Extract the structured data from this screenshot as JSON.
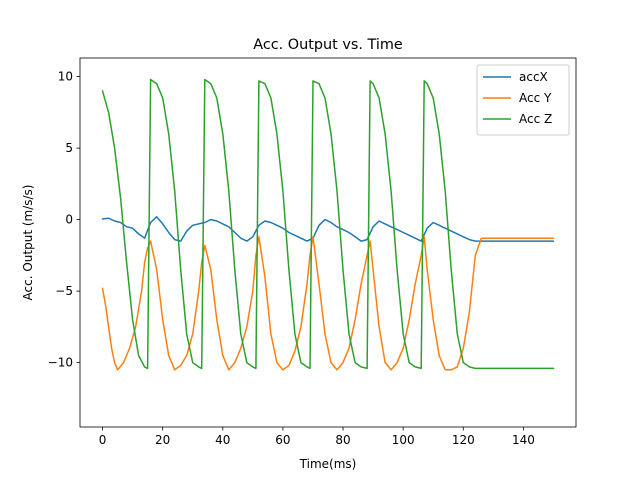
{
  "chart_data": {
    "type": "line",
    "title": "Acc. Output vs. Time",
    "xlabel": "Time(ms)",
    "ylabel": "Acc. Output (m/s/s)",
    "xlim": [
      -7.5,
      157.5
    ],
    "ylim": [
      -14.5,
      11.3
    ],
    "xticks": [
      0,
      20,
      40,
      60,
      80,
      100,
      120,
      140
    ],
    "yticks": [
      -10,
      -5,
      0,
      5,
      10
    ],
    "grid": false,
    "legend_position": "top-right",
    "series": [
      {
        "name": "accX",
        "color": "#1f77b4",
        "x": [
          0,
          2,
          4,
          6,
          8,
          10,
          12,
          14,
          16,
          18,
          20,
          22,
          24,
          26,
          28,
          30,
          32,
          34,
          36,
          38,
          40,
          42,
          44,
          46,
          48,
          50,
          52,
          54,
          56,
          58,
          60,
          62,
          64,
          66,
          68,
          70,
          72,
          74,
          76,
          78,
          80,
          82,
          84,
          86,
          88,
          90,
          92,
          94,
          96,
          98,
          100,
          102,
          104,
          106,
          108,
          110,
          112,
          114,
          116,
          118,
          120,
          122,
          124,
          126,
          128,
          130,
          132,
          134,
          136,
          138,
          140,
          142,
          144,
          146,
          148,
          150
        ],
        "y": [
          0.05,
          0.1,
          -0.1,
          -0.2,
          -0.5,
          -0.6,
          -1.0,
          -1.3,
          -0.2,
          0.2,
          -0.3,
          -0.9,
          -1.4,
          -1.5,
          -0.8,
          -0.4,
          -0.3,
          -0.2,
          0.0,
          -0.1,
          -0.3,
          -0.5,
          -0.9,
          -1.3,
          -1.5,
          -1.2,
          -0.4,
          -0.1,
          -0.2,
          -0.4,
          -0.6,
          -0.9,
          -1.1,
          -1.3,
          -1.5,
          -1.3,
          -0.4,
          0.0,
          -0.2,
          -0.5,
          -0.7,
          -0.9,
          -1.2,
          -1.5,
          -1.4,
          -0.5,
          -0.1,
          -0.3,
          -0.5,
          -0.7,
          -0.9,
          -1.1,
          -1.3,
          -1.5,
          -0.6,
          -0.2,
          -0.4,
          -0.6,
          -0.8,
          -1.0,
          -1.2,
          -1.4,
          -1.5,
          -1.5,
          -1.5,
          -1.5,
          -1.5,
          -1.5,
          -1.5,
          -1.5,
          -1.5,
          -1.5,
          -1.5,
          -1.5,
          -1.5,
          -1.5
        ]
      },
      {
        "name": "Acc Y",
        "color": "#ff7f0e",
        "x": [
          0,
          1,
          2,
          3,
          4,
          5,
          7,
          9,
          11,
          13,
          14,
          15,
          16,
          18,
          20,
          22,
          24,
          26,
          28,
          30,
          32,
          33,
          34,
          36,
          38,
          40,
          42,
          44,
          46,
          48,
          50,
          51,
          52,
          54,
          56,
          58,
          60,
          62,
          64,
          66,
          68,
          69,
          70,
          72,
          74,
          76,
          78,
          80,
          82,
          84,
          86,
          88,
          89,
          90,
          92,
          94,
          96,
          98,
          100,
          102,
          104,
          106,
          107,
          108,
          110,
          112,
          114,
          116,
          118,
          120,
          122,
          124,
          126,
          128,
          130,
          132,
          134,
          136,
          138,
          140,
          142,
          144,
          146,
          148,
          150
        ],
        "y": [
          -4.8,
          -6.0,
          -7.5,
          -9.0,
          -10.0,
          -10.5,
          -10.0,
          -9.0,
          -7.5,
          -5.0,
          -3.0,
          -2.0,
          -1.5,
          -3.5,
          -7.0,
          -9.5,
          -10.5,
          -10.2,
          -9.5,
          -8.0,
          -5.0,
          -3.0,
          -1.8,
          -3.5,
          -7.0,
          -9.5,
          -10.5,
          -10.0,
          -9.0,
          -7.5,
          -5.0,
          -2.5,
          -1.2,
          -4.0,
          -8.0,
          -10.0,
          -10.5,
          -10.2,
          -9.2,
          -7.5,
          -4.5,
          -2.5,
          -1.2,
          -4.5,
          -8.0,
          -10.0,
          -10.5,
          -10.0,
          -9.0,
          -7.0,
          -4.5,
          -2.5,
          -1.5,
          -3.5,
          -7.5,
          -10.0,
          -10.5,
          -10.0,
          -9.0,
          -7.0,
          -4.5,
          -2.5,
          -1.2,
          -3.5,
          -7.0,
          -9.5,
          -10.5,
          -10.5,
          -10.3,
          -9.0,
          -6.5,
          -2.5,
          -1.3,
          -1.3,
          -1.3,
          -1.3,
          -1.3,
          -1.3,
          -1.3,
          -1.3,
          -1.3,
          -1.3,
          -1.3,
          -1.3,
          -1.3
        ]
      },
      {
        "name": "Acc Z",
        "color": "#2ca02c",
        "x": [
          0,
          2,
          4,
          6,
          8,
          10,
          12,
          14,
          15,
          16,
          18,
          20,
          22,
          24,
          26,
          28,
          30,
          32,
          33,
          34,
          36,
          38,
          40,
          42,
          44,
          46,
          48,
          50,
          51,
          52,
          54,
          56,
          58,
          60,
          62,
          64,
          66,
          68,
          69,
          70,
          72,
          74,
          76,
          78,
          80,
          82,
          84,
          86,
          88,
          89,
          90,
          92,
          94,
          96,
          98,
          100,
          102,
          104,
          106,
          107,
          108,
          110,
          112,
          114,
          116,
          118,
          120,
          122,
          124,
          126,
          128,
          130,
          132,
          134,
          136,
          138,
          140,
          142,
          144,
          146,
          148,
          150
        ],
        "y": [
          9.0,
          7.5,
          5.0,
          1.5,
          -3.0,
          -7.0,
          -9.5,
          -10.3,
          -10.4,
          9.8,
          9.5,
          8.5,
          6.0,
          2.0,
          -3.5,
          -8.0,
          -10.0,
          -10.3,
          -10.4,
          9.8,
          9.5,
          8.5,
          6.0,
          2.0,
          -3.5,
          -8.0,
          -10.0,
          -10.3,
          -10.4,
          9.7,
          9.5,
          8.5,
          6.0,
          2.0,
          -3.5,
          -8.0,
          -10.0,
          -10.3,
          -10.4,
          9.7,
          9.5,
          8.5,
          6.0,
          2.0,
          -3.5,
          -8.0,
          -10.0,
          -10.3,
          -10.4,
          9.7,
          9.5,
          8.5,
          6.0,
          2.0,
          -3.5,
          -8.0,
          -10.0,
          -10.3,
          -10.4,
          9.7,
          9.5,
          8.5,
          6.0,
          2.0,
          -3.5,
          -8.0,
          -10.0,
          -10.3,
          -10.4,
          -10.4,
          -10.4,
          -10.4,
          -10.4,
          -10.4,
          -10.4,
          -10.4,
          -10.4,
          -10.4,
          -10.4,
          -10.4,
          -10.4,
          -10.4
        ]
      }
    ]
  }
}
